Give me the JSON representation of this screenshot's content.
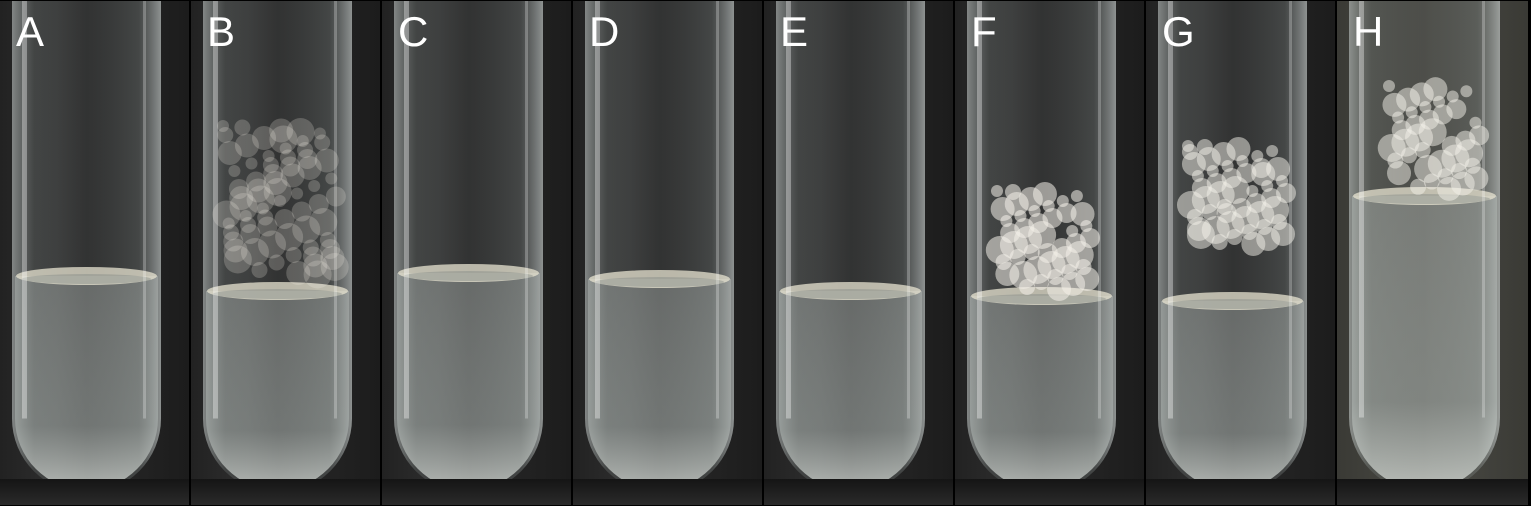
{
  "panels": [
    {
      "label": "A",
      "growth": "none",
      "liquid": 275
    },
    {
      "label": "B",
      "growth": "fine",
      "liquid": 290
    },
    {
      "label": "C",
      "growth": "none",
      "liquid": 272
    },
    {
      "label": "D",
      "growth": "none",
      "liquid": 278
    },
    {
      "label": "E",
      "growth": "none",
      "liquid": 290
    },
    {
      "label": "F",
      "growth": "fluffy-low",
      "liquid": 295
    },
    {
      "label": "G",
      "growth": "fluffy-high",
      "liquid": 300
    },
    {
      "label": "H",
      "growth": "fluffy-top",
      "liquid": 195
    }
  ]
}
